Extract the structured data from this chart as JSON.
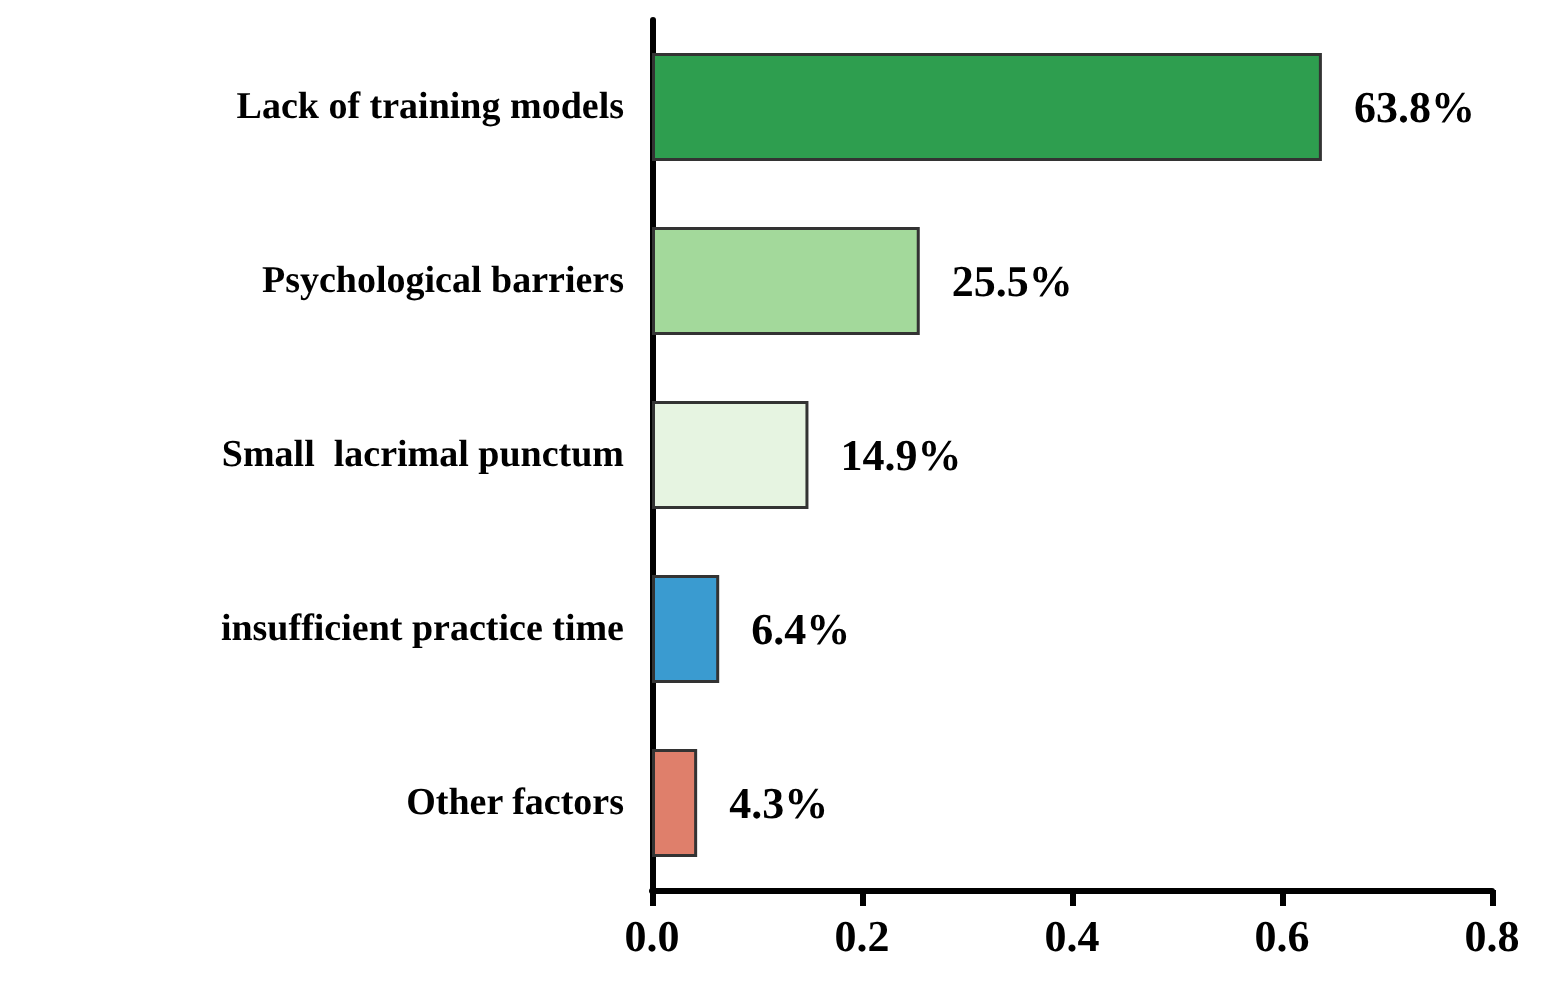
{
  "chart_data": {
    "type": "bar",
    "orientation": "horizontal",
    "categories": [
      "Lack of training models",
      "Psychological barriers",
      "Small  lacrimal punctum",
      "insufficient practice time",
      "Other factors"
    ],
    "values": [
      0.638,
      0.255,
      0.149,
      0.064,
      0.043
    ],
    "colors": [
      "#2e9e4f",
      "#a3d99b",
      "#e6f4e1",
      "#3a9bd0",
      "#df7f6b"
    ],
    "value_labels": [
      "63.8%",
      "25.5%",
      "14.9%",
      "6.4%",
      "4.3%"
    ],
    "xlim": [
      0,
      0.8
    ],
    "xticks": [
      {
        "value": 0,
        "label": "0.0"
      },
      0.2,
      0.4,
      0.6,
      0.8
    ],
    "grid": false
  }
}
